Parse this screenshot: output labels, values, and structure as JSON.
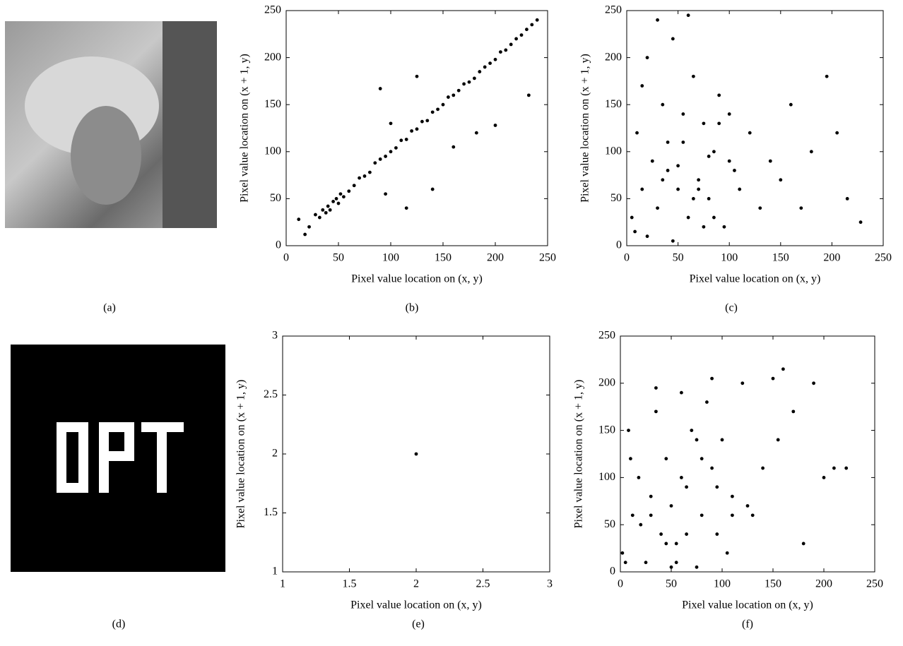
{
  "captions": [
    "(a)",
    "(b)",
    "(c)",
    "(d)",
    "(e)",
    "(f)"
  ],
  "chart_data": [
    {
      "type": "scatter",
      "xlabel": "Pixel value location on (x, y)",
      "ylabel": "Pixel value location on (x + 1, y)",
      "color": "#000000",
      "xlim": [
        0,
        250
      ],
      "ylim": [
        0,
        250
      ],
      "xticks": [
        0,
        50,
        100,
        150,
        200,
        250
      ],
      "yticks": [
        0,
        50,
        100,
        150,
        200,
        250
      ],
      "x": [
        12,
        18,
        22,
        28,
        32,
        35,
        38,
        40,
        42,
        45,
        48,
        50,
        52,
        55,
        60,
        65,
        70,
        75,
        80,
        85,
        90,
        95,
        100,
        105,
        110,
        115,
        120,
        125,
        130,
        135,
        140,
        145,
        150,
        155,
        160,
        165,
        170,
        175,
        180,
        185,
        190,
        195,
        200,
        205,
        210,
        215,
        220,
        225,
        230,
        235,
        240,
        90,
        115,
        140,
        160,
        182,
        200,
        232,
        125,
        100,
        95
      ],
      "values": [
        28,
        12,
        20,
        33,
        30,
        38,
        35,
        42,
        38,
        47,
        50,
        45,
        55,
        52,
        58,
        64,
        72,
        74,
        78,
        88,
        92,
        95,
        100,
        104,
        112,
        113,
        122,
        124,
        132,
        133,
        142,
        145,
        150,
        158,
        160,
        165,
        172,
        174,
        178,
        185,
        190,
        194,
        198,
        206,
        208,
        214,
        220,
        224,
        230,
        235,
        240,
        167,
        40,
        60,
        105,
        120,
        128,
        160,
        180,
        130,
        55
      ]
    },
    {
      "type": "scatter",
      "xlabel": "Pixel value location on (x, y)",
      "ylabel": "Pixel value location on (x + 1, y)",
      "color": "#000000",
      "xlim": [
        0,
        250
      ],
      "ylim": [
        0,
        250
      ],
      "xticks": [
        0,
        50,
        100,
        150,
        200,
        250
      ],
      "yticks": [
        0,
        50,
        100,
        150,
        200,
        250
      ],
      "x": [
        5,
        10,
        15,
        20,
        25,
        30,
        35,
        40,
        45,
        50,
        55,
        60,
        65,
        70,
        75,
        80,
        85,
        90,
        95,
        100,
        110,
        120,
        130,
        140,
        150,
        160,
        170,
        180,
        195,
        205,
        215,
        228,
        20,
        30,
        45,
        60,
        75,
        90,
        105,
        40,
        55,
        70,
        85,
        35,
        50,
        65,
        80,
        100,
        15,
        8
      ],
      "values": [
        30,
        120,
        60,
        200,
        90,
        40,
        150,
        80,
        220,
        60,
        110,
        30,
        180,
        70,
        130,
        50,
        100,
        160,
        20,
        90,
        60,
        120,
        40,
        90,
        70,
        150,
        40,
        100,
        180,
        120,
        50,
        25,
        10,
        240,
        5,
        245,
        20,
        130,
        80,
        110,
        140,
        60,
        30,
        70,
        85,
        50,
        95,
        140,
        170,
        15
      ]
    },
    {
      "type": "scatter",
      "xlabel": "Pixel value location on (x, y)",
      "ylabel": "Pixel value location on (x + 1, y)",
      "color": "#000000",
      "xlim": [
        1,
        3
      ],
      "ylim": [
        1,
        3
      ],
      "xticks": [
        1,
        1.5,
        2,
        2.5,
        3
      ],
      "yticks": [
        1,
        1.5,
        2,
        2.5,
        3
      ],
      "x": [
        2
      ],
      "values": [
        2
      ]
    },
    {
      "type": "scatter",
      "xlabel": "Pixel value location on (x, y)",
      "ylabel": "Pixel value location on (x + 1, y)",
      "color": "#000000",
      "xlim": [
        0,
        250
      ],
      "ylim": [
        0,
        250
      ],
      "xticks": [
        0,
        50,
        100,
        150,
        200,
        250
      ],
      "yticks": [
        0,
        50,
        100,
        150,
        200,
        250
      ],
      "x": [
        2,
        8,
        12,
        18,
        25,
        30,
        35,
        40,
        45,
        50,
        55,
        60,
        65,
        70,
        75,
        80,
        85,
        90,
        95,
        100,
        105,
        110,
        120,
        130,
        140,
        150,
        160,
        170,
        180,
        190,
        200,
        210,
        222,
        20,
        35,
        50,
        65,
        80,
        95,
        110,
        45,
        60,
        75,
        30,
        55,
        90,
        125,
        155,
        10,
        5
      ],
      "values": [
        20,
        150,
        60,
        100,
        10,
        80,
        195,
        40,
        120,
        70,
        30,
        190,
        90,
        150,
        5,
        60,
        180,
        110,
        40,
        140,
        20,
        80,
        200,
        60,
        110,
        205,
        215,
        170,
        30,
        200,
        100,
        110,
        110,
        50,
        170,
        5,
        40,
        120,
        90,
        60,
        30,
        100,
        140,
        60,
        10,
        205,
        70,
        140,
        120,
        10
      ]
    }
  ]
}
